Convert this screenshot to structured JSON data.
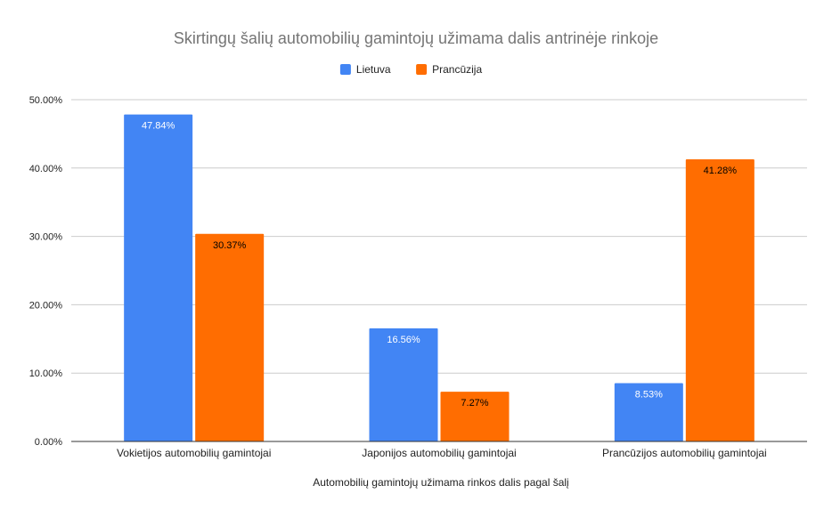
{
  "chart_data": {
    "type": "bar",
    "title": "Skirtingų šalių automobilių gamintojų užimama dalis antrinėje rinkoje",
    "xlabel": "Automobilių gamintojų užimama rinkos dalis pagal šalį",
    "ylabel": "",
    "categories": [
      "Vokietijos automobilių gamintojai",
      "Japonijos automobilių gamintojai",
      "Prancūzijos automobilių gamintojai"
    ],
    "series": [
      {
        "name": "Lietuva",
        "color": "#4285f4",
        "label_color": "#ffffff",
        "values": [
          47.84,
          16.56,
          8.53
        ],
        "labels": [
          "47.84%",
          "16.56%",
          "8.53%"
        ]
      },
      {
        "name": "Prancūzija",
        "color": "#ff6d01",
        "label_color": "#000000",
        "values": [
          30.37,
          7.27,
          41.28
        ],
        "labels": [
          "30.37%",
          "7.27%",
          "41.28%"
        ]
      }
    ],
    "ylim": [
      0,
      50
    ],
    "yticks": [
      0,
      10,
      20,
      30,
      40,
      50
    ],
    "ytick_labels": [
      "0.00%",
      "10.00%",
      "20.00%",
      "30.00%",
      "40.00%",
      "50.00%"
    ],
    "grid": true,
    "legend_position": "top-center"
  }
}
